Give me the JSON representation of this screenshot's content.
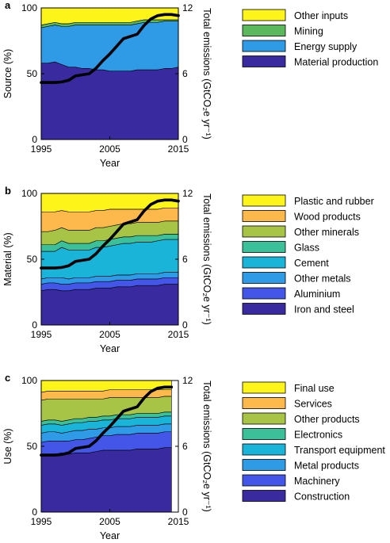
{
  "chart_data": [
    {
      "panel_label": "a",
      "type": "area",
      "x": [
        1995,
        1996,
        1997,
        1998,
        1999,
        2000,
        2001,
        2002,
        2003,
        2004,
        2005,
        2006,
        2007,
        2008,
        2009,
        2010,
        2011,
        2012,
        2013,
        2014,
        2015
      ],
      "x_ticks": [
        "1995",
        "2005",
        "2015"
      ],
      "xlim": [
        1995,
        2015
      ],
      "xlabel": "Year",
      "ylabel": "Source (%)",
      "ylim": [
        0,
        100
      ],
      "y_ticks": [
        "0",
        "50",
        "100"
      ],
      "y2label": "Total emissions (GtCO₂e yr⁻¹)",
      "y2lim": [
        0,
        12
      ],
      "y2_ticks": [
        "0",
        "6",
        "12"
      ],
      "stack_order": "bottom-to-top",
      "series": [
        {
          "name": "Material production",
          "color": "#3a2aa0",
          "values": [
            58,
            58,
            59,
            57,
            55,
            55,
            54,
            54,
            53,
            53,
            52,
            52,
            52,
            52,
            53,
            53,
            53,
            53,
            54,
            54,
            55
          ]
        },
        {
          "name": "Energy supply",
          "color": "#2f9ae6",
          "values": [
            27,
            28,
            28,
            29,
            31,
            32,
            33,
            33,
            34,
            34,
            35,
            35,
            35,
            35,
            35,
            36,
            36,
            36,
            36,
            36,
            35
          ]
        },
        {
          "name": "Mining",
          "color": "#5cb85c",
          "values": [
            2,
            2,
            2,
            2,
            2,
            2,
            2,
            2,
            2,
            2,
            2,
            2,
            2,
            2,
            2,
            2,
            2,
            2,
            1,
            1,
            1
          ]
        },
        {
          "name": "Other inputs",
          "color": "#fdf51a",
          "values": [
            13,
            12,
            11,
            12,
            12,
            11,
            11,
            11,
            11,
            11,
            11,
            11,
            11,
            11,
            10,
            9,
            9,
            9,
            9,
            9,
            9
          ]
        }
      ],
      "emissions_line": {
        "color": "#000000",
        "values": [
          5.2,
          5.2,
          5.2,
          5.25,
          5.4,
          5.8,
          5.9,
          6.0,
          6.5,
          7.2,
          7.8,
          8.5,
          9.2,
          9.4,
          9.6,
          10.4,
          11.0,
          11.3,
          11.4,
          11.4,
          11.3
        ]
      },
      "legend_placement": "right"
    },
    {
      "panel_label": "b",
      "type": "area",
      "x": [
        1995,
        1996,
        1997,
        1998,
        1999,
        2000,
        2001,
        2002,
        2003,
        2004,
        2005,
        2006,
        2007,
        2008,
        2009,
        2010,
        2011,
        2012,
        2013,
        2014,
        2015
      ],
      "x_ticks": [
        "1995",
        "2005",
        "2015"
      ],
      "xlim": [
        1995,
        2015
      ],
      "xlabel": "Year",
      "ylabel": "Material (%)",
      "ylim": [
        0,
        100
      ],
      "y_ticks": [
        "0",
        "50",
        "100"
      ],
      "y2label": "Total emissions (GtCO₂e yr⁻¹)",
      "y2lim": [
        0,
        12
      ],
      "y2_ticks": [
        "0",
        "6",
        "12"
      ],
      "stack_order": "bottom-to-top",
      "series": [
        {
          "name": "Iron and steel",
          "color": "#3a2aa0",
          "values": [
            26,
            27,
            27,
            26,
            26,
            27,
            27,
            27,
            28,
            28,
            28,
            29,
            29,
            29,
            30,
            30,
            30,
            30,
            31,
            31,
            31
          ]
        },
        {
          "name": "Aluminium",
          "color": "#4356e8",
          "values": [
            5,
            5,
            5,
            5,
            5,
            5,
            5,
            5,
            5,
            5,
            5,
            5,
            5,
            5,
            5,
            5,
            5,
            5,
            5,
            5,
            5
          ]
        },
        {
          "name": "Other metals",
          "color": "#2f9ae6",
          "values": [
            4,
            4,
            4,
            5,
            4,
            4,
            4,
            4,
            4,
            4,
            4,
            4,
            4,
            4,
            4,
            4,
            4,
            4,
            4,
            4,
            4
          ]
        },
        {
          "name": "Cement",
          "color": "#19b4d8",
          "values": [
            21,
            20,
            20,
            23,
            22,
            21,
            21,
            21,
            22,
            22,
            23,
            23,
            24,
            24,
            24,
            24,
            24,
            25,
            25,
            25,
            25
          ]
        },
        {
          "name": "Glass",
          "color": "#3cc09a",
          "values": [
            5,
            5,
            5,
            5,
            5,
            5,
            5,
            5,
            5,
            5,
            5,
            5,
            5,
            5,
            5,
            5,
            5,
            4,
            4,
            4,
            4
          ]
        },
        {
          "name": "Other minerals",
          "color": "#a8c446",
          "values": [
            10,
            10,
            11,
            10,
            10,
            10,
            10,
            10,
            10,
            10,
            10,
            10,
            10,
            10,
            10,
            10,
            10,
            10,
            10,
            10,
            10
          ]
        },
        {
          "name": "Wood products",
          "color": "#fdb94b",
          "values": [
            15,
            15,
            14,
            13,
            14,
            14,
            14,
            14,
            13,
            13,
            13,
            12,
            11,
            11,
            10,
            10,
            10,
            10,
            10,
            10,
            10
          ]
        },
        {
          "name": "Plastic and rubber",
          "color": "#fdf51a",
          "values": [
            14,
            14,
            14,
            13,
            14,
            14,
            14,
            14,
            13,
            13,
            12,
            12,
            12,
            12,
            12,
            12,
            12,
            12,
            11,
            11,
            11
          ]
        }
      ],
      "emissions_line": {
        "color": "#000000",
        "values": [
          5.2,
          5.2,
          5.2,
          5.25,
          5.4,
          5.8,
          5.9,
          6.0,
          6.5,
          7.2,
          7.8,
          8.5,
          9.2,
          9.4,
          9.6,
          10.4,
          11.0,
          11.3,
          11.4,
          11.4,
          11.3
        ]
      },
      "legend_placement": "right"
    },
    {
      "panel_label": "c",
      "type": "area",
      "x": [
        1995,
        1996,
        1997,
        1998,
        1999,
        2000,
        2001,
        2002,
        2003,
        2004,
        2005,
        2006,
        2007,
        2008,
        2009,
        2010,
        2011,
        2012,
        2013,
        2014
      ],
      "x_ticks": [
        "1995",
        "2005",
        "2015"
      ],
      "xlim": [
        1995,
        2015
      ],
      "xlabel": "Year",
      "ylabel": "Use (%)",
      "ylim": [
        0,
        100
      ],
      "y_ticks": [
        "0",
        "50",
        "100"
      ],
      "y2label": "Total emissions (GtCO₂e yr⁻¹)",
      "y2lim": [
        0,
        12
      ],
      "y2_ticks": [
        "0",
        "6",
        "12"
      ],
      "stack_order": "bottom-to-top",
      "series": [
        {
          "name": "Construction",
          "color": "#3a2aa0",
          "values": [
            43,
            44,
            44,
            45,
            44,
            45,
            45,
            45,
            46,
            47,
            47,
            47,
            47,
            47,
            48,
            48,
            48,
            48,
            49,
            49
          ]
        },
        {
          "name": "Machinery",
          "color": "#4356e8",
          "values": [
            10,
            10,
            10,
            9,
            10,
            10,
            10,
            11,
            11,
            11,
            11,
            12,
            12,
            12,
            12,
            12,
            12,
            12,
            12,
            12
          ]
        },
        {
          "name": "Metal products",
          "color": "#2f9ae6",
          "values": [
            7,
            7,
            7,
            6,
            7,
            7,
            7,
            7,
            6,
            6,
            6,
            6,
            6,
            6,
            6,
            6,
            6,
            6,
            6,
            6
          ]
        },
        {
          "name": "Transport equipment",
          "color": "#19b4d8",
          "values": [
            6,
            6,
            6,
            6,
            6,
            6,
            6,
            6,
            6,
            6,
            6,
            6,
            6,
            6,
            6,
            6,
            6,
            6,
            6,
            6
          ]
        },
        {
          "name": "Electronics",
          "color": "#3cc09a",
          "values": [
            3,
            3,
            3,
            3,
            3,
            3,
            3,
            3,
            3,
            3,
            3,
            3,
            3,
            3,
            3,
            3,
            3,
            3,
            3,
            3
          ]
        },
        {
          "name": "Other products",
          "color": "#a8c446",
          "values": [
            16,
            16,
            16,
            17,
            16,
            15,
            15,
            14,
            14,
            13,
            14,
            13,
            13,
            13,
            12,
            12,
            12,
            12,
            12,
            12
          ]
        },
        {
          "name": "Services",
          "color": "#fdb94b",
          "values": [
            6,
            6,
            6,
            6,
            6,
            6,
            6,
            6,
            6,
            6,
            6,
            6,
            6,
            6,
            6,
            6,
            6,
            6,
            5,
            5
          ]
        },
        {
          "name": "Final use",
          "color": "#fdf51a",
          "values": [
            9,
            8,
            8,
            8,
            8,
            8,
            8,
            8,
            8,
            8,
            7,
            7,
            7,
            7,
            7,
            7,
            7,
            7,
            7,
            7
          ]
        }
      ],
      "emissions_line": {
        "color": "#000000",
        "values": [
          5.2,
          5.2,
          5.2,
          5.25,
          5.4,
          5.8,
          5.9,
          6.0,
          6.5,
          7.2,
          7.8,
          8.5,
          9.2,
          9.4,
          9.6,
          10.4,
          11.0,
          11.3,
          11.4,
          11.4
        ]
      },
      "legend_placement": "right"
    }
  ]
}
